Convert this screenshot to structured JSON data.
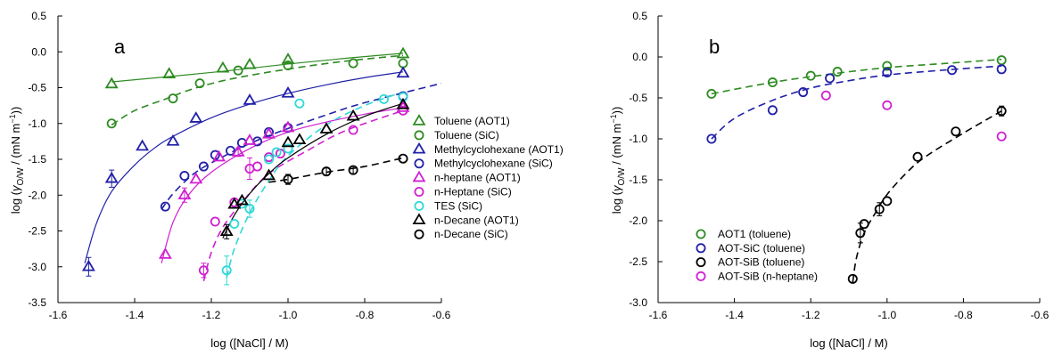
{
  "chart_data": [
    {
      "panel": "a",
      "type": "scatter",
      "xlabel": "log ([NaCl] / M)",
      "ylabel_parts": [
        "log (",
        "γ",
        "O/W",
        " / (mN m",
        "−1",
        "))"
      ],
      "xlim": [
        -1.6,
        -0.6
      ],
      "ylim": [
        -3.5,
        0.5
      ],
      "xticks": [
        "-1.6",
        "-1.4",
        "-1.2",
        "-1.0",
        "-0.8",
        "-0.6"
      ],
      "yticks": [
        "-3.5",
        "-3.0",
        "-2.5",
        "-2.0",
        "-1.5",
        "-1.0",
        "-0.5",
        "0.0",
        "0.5"
      ],
      "xtick_values": [
        -1.6,
        -1.4,
        -1.2,
        -1.0,
        -0.8,
        -0.6
      ],
      "ytick_values": [
        -3.5,
        -3.0,
        -2.5,
        -2.0,
        -1.5,
        -1.0,
        -0.5,
        0.0,
        0.5
      ],
      "grid": false,
      "legend_position": "right",
      "series": [
        {
          "name": "Toluene (AOT1)",
          "color": "#2e8b22",
          "marker": "triangle",
          "curve": "solid",
          "x": [
            -1.46,
            -1.31,
            -1.17,
            -1.1,
            -1.0,
            -0.7
          ],
          "y": [
            -0.45,
            -0.31,
            -0.23,
            -0.18,
            -0.11,
            -0.03
          ],
          "fit": [
            [
              -1.46,
              -0.42
            ],
            [
              -1.3,
              -0.34
            ],
            [
              -1.15,
              -0.26
            ],
            [
              -1.0,
              -0.17
            ],
            [
              -0.85,
              -0.09
            ],
            [
              -0.7,
              -0.02
            ]
          ]
        },
        {
          "name": "Toluene (SiC)",
          "color": "#2e8b22",
          "marker": "circle",
          "curve": "dashed",
          "x": [
            -1.46,
            -1.3,
            -1.23,
            -1.13,
            -1.0,
            -0.83,
            -0.7
          ],
          "y": [
            -1.0,
            -0.65,
            -0.44,
            -0.26,
            -0.19,
            -0.16,
            -0.16
          ],
          "fit": [
            [
              -1.46,
              -1.02
            ],
            [
              -1.4,
              -0.82
            ],
            [
              -1.32,
              -0.66
            ],
            [
              -1.25,
              -0.52
            ],
            [
              -1.15,
              -0.38
            ],
            [
              -1.0,
              -0.24
            ],
            [
              -0.85,
              -0.13
            ],
            [
              -0.7,
              -0.05
            ]
          ]
        },
        {
          "name": "Methylcyclohexane (AOT1)",
          "color": "#2020a8",
          "marker": "triangle",
          "curve": "solid",
          "x": [
            -1.52,
            -1.46,
            -1.38,
            -1.3,
            -1.24,
            -1.1,
            -1.0,
            -0.7
          ],
          "y": [
            -3.0,
            -1.77,
            -1.32,
            -1.25,
            -0.93,
            -0.68,
            -0.58,
            -0.3
          ],
          "err": [
            0.13,
            0.12,
            0,
            0,
            0,
            0,
            0,
            0
          ],
          "fit": [
            [
              -1.53,
              -2.95
            ],
            [
              -1.5,
              -2.4
            ],
            [
              -1.46,
              -1.95
            ],
            [
              -1.4,
              -1.58
            ],
            [
              -1.35,
              -1.35
            ],
            [
              -1.3,
              -1.18
            ],
            [
              -1.2,
              -0.92
            ],
            [
              -1.1,
              -0.73
            ],
            [
              -1.0,
              -0.58
            ],
            [
              -0.9,
              -0.46
            ],
            [
              -0.8,
              -0.36
            ],
            [
              -0.7,
              -0.28
            ]
          ]
        },
        {
          "name": "Methylcyclohexane (SiC)",
          "color": "#2020a8",
          "marker": "circle",
          "curve": "dashed",
          "x": [
            -1.32,
            -1.27,
            -1.22,
            -1.19,
            -1.15,
            -1.12,
            -1.08,
            -1.05,
            -1.0,
            -0.7
          ],
          "y": [
            -2.16,
            -1.73,
            -1.6,
            -1.44,
            -1.38,
            -1.27,
            -1.25,
            -1.12,
            -1.06,
            -0.62
          ],
          "fit": [
            [
              -1.33,
              -2.2
            ],
            [
              -1.3,
              -1.98
            ],
            [
              -1.25,
              -1.72
            ],
            [
              -1.2,
              -1.55
            ],
            [
              -1.1,
              -1.28
            ],
            [
              -1.0,
              -1.07
            ],
            [
              -0.9,
              -0.88
            ],
            [
              -0.8,
              -0.71
            ],
            [
              -0.6,
              -0.44
            ]
          ]
        },
        {
          "name": "n-heptane (AOT1)",
          "color": "#d020d0",
          "marker": "triangle",
          "curve": "solid",
          "x": [
            -1.32,
            -1.27,
            -1.24,
            -1.18,
            -1.13,
            -1.1,
            -1.05,
            -1.0,
            -0.7
          ],
          "y": [
            -2.83,
            -2.0,
            -1.78,
            -1.47,
            -1.4,
            -1.24,
            -1.15,
            -1.06,
            -0.78
          ],
          "err": [
            0,
            0.1,
            0,
            0,
            0.06,
            0,
            0,
            0,
            0
          ],
          "fit": [
            [
              -1.33,
              -2.95
            ],
            [
              -1.3,
              -2.38
            ],
            [
              -1.26,
              -2.0
            ],
            [
              -1.2,
              -1.68
            ],
            [
              -1.1,
              -1.35
            ],
            [
              -1.0,
              -1.12
            ],
            [
              -0.9,
              -0.98
            ],
            [
              -0.8,
              -0.87
            ],
            [
              -0.7,
              -0.78
            ]
          ]
        },
        {
          "name": "n-Heptane (SiC)",
          "color": "#d020d0",
          "marker": "circle",
          "curve": "dashed",
          "x": [
            -1.22,
            -1.19,
            -1.14,
            -1.1,
            -1.08,
            -1.05,
            -1.02,
            -0.83,
            -0.7
          ],
          "y": [
            -3.05,
            -2.37,
            -2.1,
            -1.63,
            -1.6,
            -1.47,
            -1.42,
            -1.09,
            -0.82
          ],
          "err": [
            0.1,
            0,
            0,
            0.15,
            0,
            0,
            0,
            0,
            0
          ],
          "fit": [
            [
              -1.22,
              -3.2
            ],
            [
              -1.2,
              -2.8
            ],
            [
              -1.17,
              -2.45
            ],
            [
              -1.12,
              -2.1
            ],
            [
              -1.05,
              -1.7
            ],
            [
              -0.95,
              -1.38
            ],
            [
              -0.85,
              -1.1
            ],
            [
              -0.7,
              -0.82
            ]
          ]
        },
        {
          "name": "TES (SiC)",
          "color": "#30d8d8",
          "marker": "circle",
          "curve": "dashed",
          "x": [
            -1.16,
            -1.14,
            -1.12,
            -1.1,
            -1.05,
            -1.03,
            -1.0,
            -0.97,
            -0.75,
            -0.7
          ],
          "y": [
            -3.05,
            -2.4,
            -2.12,
            -2.19,
            -1.5,
            -1.4,
            -1.35,
            -0.72,
            -0.66,
            -0.63
          ],
          "err": [
            0.2,
            0,
            0,
            0.12,
            0,
            0,
            0,
            0,
            0,
            0
          ],
          "fit": [
            [
              -1.16,
              -3.15
            ],
            [
              -1.14,
              -2.75
            ],
            [
              -1.1,
              -2.25
            ],
            [
              -1.05,
              -1.8
            ],
            [
              -1.0,
              -1.45
            ],
            [
              -0.9,
              -1.02
            ],
            [
              -0.8,
              -0.75
            ],
            [
              -0.7,
              -0.56
            ]
          ]
        },
        {
          "name": "n-Decane (AOT1)",
          "color": "#000000",
          "marker": "triangle",
          "curve": "solid",
          "x": [
            -1.16,
            -1.14,
            -1.12,
            -1.05,
            -1.0,
            -0.97,
            -0.9,
            -0.83,
            -0.7
          ],
          "y": [
            -2.51,
            -2.13,
            -2.08,
            -1.73,
            -1.27,
            -1.23,
            -1.08,
            -0.9,
            -0.74
          ],
          "err": [
            0.1,
            0,
            0,
            0,
            0,
            0,
            0,
            0,
            0
          ],
          "fit": [
            [
              -1.17,
              -2.6
            ],
            [
              -1.14,
              -2.28
            ],
            [
              -1.1,
              -1.98
            ],
            [
              -1.05,
              -1.7
            ],
            [
              -1.0,
              -1.48
            ],
            [
              -0.9,
              -1.15
            ],
            [
              -0.8,
              -0.9
            ],
            [
              -0.7,
              -0.72
            ]
          ]
        },
        {
          "name": "n-Decane (SiC)",
          "color": "#000000",
          "marker": "circle",
          "curve": "dashed",
          "x": [
            -1.0,
            -0.9,
            -0.83,
            -0.7
          ],
          "y": [
            -1.78,
            -1.67,
            -1.65,
            -1.49
          ],
          "err": [
            0.07,
            0.05,
            0.05,
            0
          ],
          "fit": [
            [
              -1.05,
              -1.82
            ],
            [
              -1.0,
              -1.78
            ],
            [
              -0.9,
              -1.68
            ],
            [
              -0.8,
              -1.6
            ],
            [
              -0.7,
              -1.48
            ]
          ]
        }
      ]
    },
    {
      "panel": "b",
      "type": "scatter",
      "xlabel": "log ([NaCl] / M)",
      "ylabel_parts": [
        "log (",
        "γ",
        "O/W",
        " / (mN m",
        "−1",
        "))"
      ],
      "xlim": [
        -1.6,
        -0.6
      ],
      "ylim": [
        -3.0,
        0.5
      ],
      "xticks": [
        "-1.6",
        "-1.4",
        "-1.2",
        "-1.0",
        "-0.8",
        "-0.6"
      ],
      "yticks": [
        "-3.0",
        "-2.5",
        "-2.0",
        "-1.5",
        "-1.0",
        "-0.5",
        "0.0",
        "0.5"
      ],
      "xtick_values": [
        -1.6,
        -1.4,
        -1.2,
        -1.0,
        -0.8,
        -0.6
      ],
      "ytick_values": [
        -3.0,
        -2.5,
        -2.0,
        -1.5,
        -1.0,
        -0.5,
        0.0,
        0.5
      ],
      "grid": false,
      "legend_position": "bottom-left",
      "series": [
        {
          "name": "AOT1 (toluene)",
          "color": "#2e8b22",
          "marker": "circle",
          "curve": "dashed",
          "x": [
            -1.46,
            -1.3,
            -1.2,
            -1.13,
            -1.0,
            -0.7
          ],
          "y": [
            -0.45,
            -0.31,
            -0.23,
            -0.18,
            -0.11,
            -0.04
          ],
          "fit": [
            [
              -1.46,
              -0.45
            ],
            [
              -1.3,
              -0.31
            ],
            [
              -1.15,
              -0.21
            ],
            [
              -1.0,
              -0.13
            ],
            [
              -0.85,
              -0.08
            ],
            [
              -0.7,
              -0.03
            ]
          ]
        },
        {
          "name": "AOT-SiC (toluene)",
          "color": "#2020a8",
          "marker": "circle",
          "curve": "dashed",
          "x": [
            -1.46,
            -1.3,
            -1.22,
            -1.15,
            -1.0,
            -0.83,
            -0.7
          ],
          "y": [
            -1.0,
            -0.65,
            -0.43,
            -0.26,
            -0.19,
            -0.16,
            -0.15
          ],
          "fit": [
            [
              -1.46,
              -1.0
            ],
            [
              -1.4,
              -0.75
            ],
            [
              -1.3,
              -0.53
            ],
            [
              -1.2,
              -0.38
            ],
            [
              -1.1,
              -0.29
            ],
            [
              -1.0,
              -0.22
            ],
            [
              -0.85,
              -0.16
            ],
            [
              -0.7,
              -0.11
            ]
          ]
        },
        {
          "name": "AOT-SiB (toluene)",
          "color": "#000000",
          "marker": "circle",
          "curve": "dashed",
          "x": [
            -1.09,
            -1.07,
            -1.06,
            -1.02,
            -1.0,
            -0.92,
            -0.82,
            -0.7
          ],
          "y": [
            -2.71,
            -2.15,
            -2.04,
            -1.86,
            -1.76,
            -1.22,
            -0.91,
            -0.66
          ],
          "err": [
            0,
            0.12,
            0,
            0.08,
            0,
            0,
            0,
            0.06
          ],
          "fit": [
            [
              -1.09,
              -2.75
            ],
            [
              -1.08,
              -2.45
            ],
            [
              -1.06,
              -2.15
            ],
            [
              -1.03,
              -1.9
            ],
            [
              -1.0,
              -1.68
            ],
            [
              -0.95,
              -1.42
            ],
            [
              -0.9,
              -1.22
            ],
            [
              -0.8,
              -0.93
            ],
            [
              -0.7,
              -0.66
            ]
          ]
        },
        {
          "name": "AOT-SiB (n-heptane)",
          "color": "#d020d0",
          "marker": "circle",
          "curve": "none",
          "x": [
            -1.16,
            -1.0,
            -0.7
          ],
          "y": [
            -0.47,
            -0.59,
            -0.97
          ]
        }
      ]
    }
  ],
  "panels": {
    "a": {
      "letter": "a"
    },
    "b": {
      "letter": "b"
    }
  }
}
